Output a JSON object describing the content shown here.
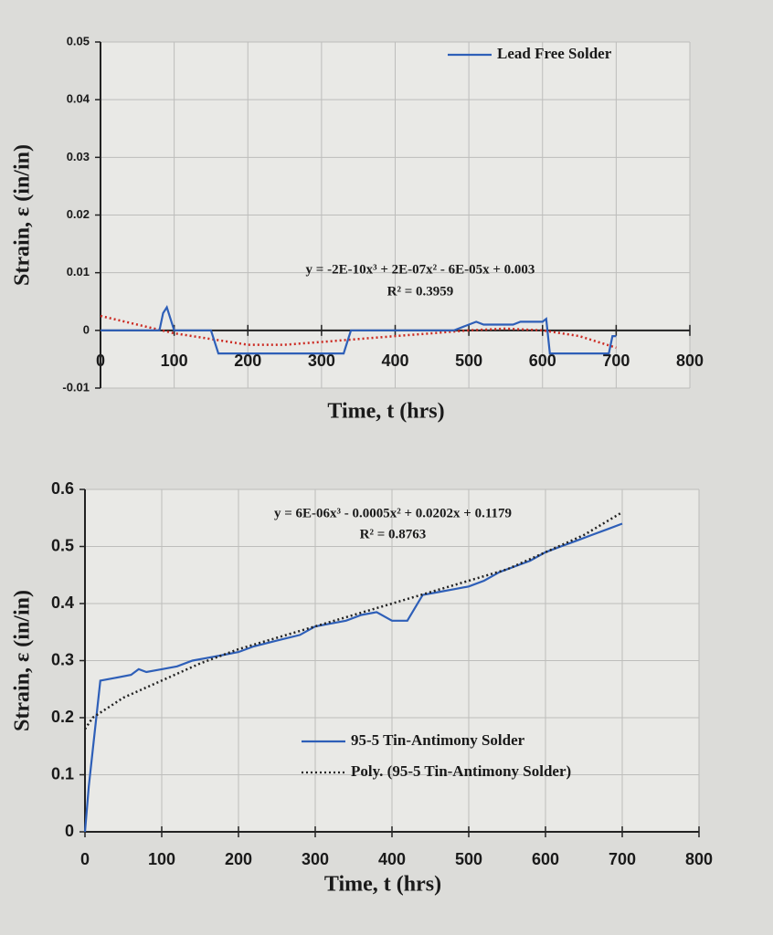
{
  "chart_data": [
    {
      "type": "line",
      "y_label": "Strain, ε (in/in)",
      "x_label": "Time, t (hrs)",
      "xlim": [
        0,
        800
      ],
      "xticks": [
        0,
        100,
        200,
        300,
        400,
        500,
        600,
        700,
        800
      ],
      "ylim": [
        -0.01,
        0.05
      ],
      "yticks": [
        -0.01,
        0,
        0.01,
        0.02,
        0.03,
        0.04,
        0.05
      ],
      "grid": true,
      "legend": "upper right",
      "series": [
        {
          "name": "Lead Free Solder",
          "color": "#2e5fb8",
          "style": "solid",
          "x": [
            0,
            80,
            85,
            90,
            95,
            100,
            150,
            160,
            200,
            300,
            330,
            340,
            480,
            500,
            510,
            520,
            560,
            570,
            600,
            605,
            610,
            690,
            695,
            700
          ],
          "values": [
            0,
            0,
            0.003,
            0.004,
            0.002,
            0,
            0,
            -0.004,
            -0.004,
            -0.004,
            -0.004,
            0,
            0,
            0.001,
            0.0015,
            0.001,
            0.001,
            0.0015,
            0.0015,
            0.002,
            -0.004,
            -0.004,
            -0.001,
            -0.001
          ]
        }
      ],
      "trendline": {
        "color": "#cc2a22",
        "style": "dotted",
        "x": [
          0,
          50,
          100,
          150,
          200,
          250,
          300,
          350,
          400,
          450,
          500,
          550,
          600,
          650,
          700
        ],
        "values": [
          0.0025,
          0.001,
          -0.0005,
          -0.0015,
          -0.0025,
          -0.0025,
          -0.002,
          -0.0015,
          -0.001,
          -0.0005,
          0,
          0.0003,
          0,
          -0.001,
          -0.003
        ]
      },
      "annotations": [
        "y = -2E-10x³ + 2E-07x² - 6E-05x + 0.003",
        "R² = 0.3959"
      ]
    },
    {
      "type": "line",
      "y_label": "Strain, ε (in/in)",
      "x_label": "Time, t (hrs)",
      "xlim": [
        0,
        800
      ],
      "xticks": [
        0,
        100,
        200,
        300,
        400,
        500,
        600,
        700,
        800
      ],
      "ylim": [
        0,
        0.6
      ],
      "yticks": [
        0,
        0.1,
        0.2,
        0.3,
        0.4,
        0.5,
        0.6
      ],
      "grid": true,
      "legend": "lower right",
      "series": [
        {
          "name": "95-5 Tin-Antimony Solder",
          "color": "#2e5fb8",
          "style": "solid",
          "x": [
            0,
            5,
            20,
            40,
            60,
            70,
            80,
            100,
            120,
            140,
            160,
            180,
            200,
            220,
            250,
            280,
            300,
            320,
            340,
            360,
            380,
            400,
            410,
            420,
            440,
            460,
            480,
            500,
            520,
            540,
            560,
            580,
            600,
            620,
            640,
            660,
            680,
            700
          ],
          "values": [
            0,
            0.08,
            0.265,
            0.27,
            0.275,
            0.285,
            0.28,
            0.285,
            0.29,
            0.3,
            0.305,
            0.31,
            0.315,
            0.325,
            0.335,
            0.345,
            0.36,
            0.365,
            0.37,
            0.38,
            0.385,
            0.37,
            0.37,
            0.37,
            0.415,
            0.42,
            0.425,
            0.43,
            0.44,
            0.455,
            0.465,
            0.475,
            0.49,
            0.5,
            0.51,
            0.52,
            0.53,
            0.54
          ]
        },
        {
          "name": "Poly. (95-5 Tin-Antimony Solder)",
          "color": "#222222",
          "style": "dotted",
          "x": [
            0,
            10,
            50,
            100,
            150,
            200,
            250,
            300,
            350,
            400,
            450,
            500,
            550,
            600,
            650,
            700
          ],
          "values": [
            0.18,
            0.2,
            0.235,
            0.265,
            0.295,
            0.32,
            0.34,
            0.36,
            0.38,
            0.4,
            0.42,
            0.44,
            0.46,
            0.49,
            0.52,
            0.56
          ]
        }
      ],
      "annotations": [
        "y = 6E-06x³ - 0.0005x² + 0.0202x + 0.1179",
        "R² = 0.8763"
      ]
    }
  ]
}
